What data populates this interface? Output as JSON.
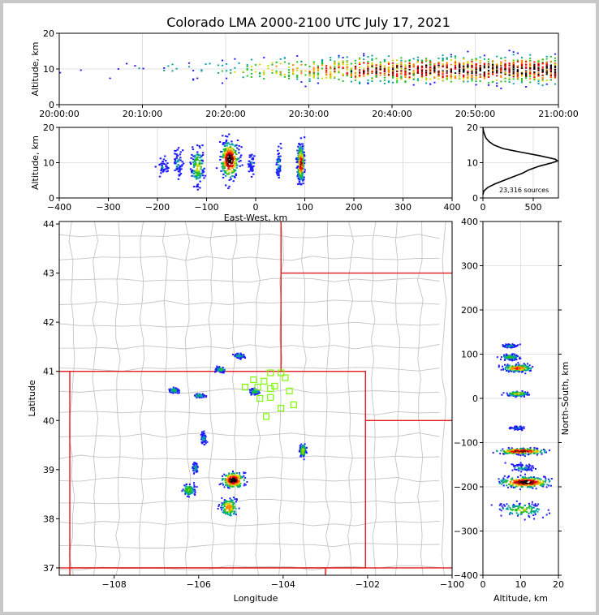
{
  "title": "Colorado LMA 2000-2100 UTC July 17, 2021",
  "colors": {
    "axis": "#000000",
    "grid": "#d8d8d8",
    "border": "#e41a1c",
    "county": "#c4c4c4",
    "station": "#7cfc00",
    "density_scale": [
      "#1e1aff",
      "#00a0a0",
      "#22c022",
      "#d8d800",
      "#ff8800",
      "#ff0000",
      "#8b0000",
      "#000000"
    ]
  },
  "icons": {
    "station_marker": "open-square"
  },
  "chart_data": [
    {
      "id": "time-height",
      "type": "heatmap",
      "title": "",
      "xlabel": "",
      "ylabel": "Altitude, km",
      "xlim": [
        "20:00:00",
        "21:00:00"
      ],
      "ylim": [
        0,
        20
      ],
      "xticks": [
        "20:00:00",
        "20:10:00",
        "20:20:00",
        "20:30:00",
        "20:40:00",
        "20:50:00",
        "21:00:00"
      ],
      "yticks": [
        0,
        10,
        20
      ],
      "grid": true,
      "density_profile": {
        "minutes": [
          0,
          5,
          10,
          15,
          20,
          25,
          30,
          35,
          40,
          45,
          50,
          55,
          60
        ],
        "relative_rate": [
          0.05,
          0.08,
          0.12,
          0.2,
          0.3,
          0.45,
          0.6,
          0.75,
          0.85,
          0.9,
          0.95,
          1.0,
          1.0
        ],
        "altitude_center_km": [
          9,
          9,
          10,
          10,
          10,
          10,
          10,
          10,
          10,
          10,
          10,
          10,
          10
        ],
        "altitude_spread_km": [
          1.5,
          2,
          2.5,
          3,
          3,
          3,
          3,
          3,
          3,
          3,
          3,
          3,
          3
        ]
      }
    },
    {
      "id": "ew-height",
      "type": "heatmap",
      "title": "",
      "xlabel": "East-West, km",
      "ylabel": "Altitude, km",
      "xlim": [
        -400,
        400
      ],
      "ylim": [
        0,
        20
      ],
      "xticks": [
        -400,
        -300,
        -200,
        -100,
        0,
        100,
        200,
        300,
        400
      ],
      "yticks": [
        0,
        10,
        20
      ],
      "grid": true,
      "clusters": [
        {
          "ew_km": -190,
          "alt_km": 9,
          "ew_spread": 8,
          "alt_spread": 2,
          "peak": 0.15
        },
        {
          "ew_km": -160,
          "alt_km": 10,
          "ew_spread": 6,
          "alt_spread": 3,
          "peak": 0.2
        },
        {
          "ew_km": -120,
          "alt_km": 9,
          "ew_spread": 10,
          "alt_spread": 4,
          "peak": 0.45
        },
        {
          "ew_km": -55,
          "alt_km": 11,
          "ew_spread": 14,
          "alt_spread": 4,
          "peak": 1.0
        },
        {
          "ew_km": -10,
          "alt_km": 10,
          "ew_spread": 4,
          "alt_spread": 2,
          "peak": 0.15
        },
        {
          "ew_km": 45,
          "alt_km": 10,
          "ew_spread": 3,
          "alt_spread": 3,
          "peak": 0.2
        },
        {
          "ew_km": 90,
          "alt_km": 10,
          "ew_spread": 5,
          "alt_spread": 4,
          "peak": 0.85
        }
      ]
    },
    {
      "id": "altitude-histogram",
      "type": "line",
      "title": "",
      "xlabel": "",
      "ylabel": "",
      "xlim": [
        0,
        750
      ],
      "ylim": [
        0,
        20
      ],
      "xticks": [
        0,
        500
      ],
      "yticks": [
        0,
        10,
        20
      ],
      "grid": true,
      "annotation": "23,316 sources",
      "series": [
        {
          "altitude_km": [
            1,
            2,
            3,
            4,
            5,
            6,
            7,
            8,
            9,
            10,
            10.5,
            11,
            12,
            13,
            14,
            15,
            16,
            17,
            18,
            19,
            20
          ],
          "source_count": [
            0,
            10,
            50,
            120,
            210,
            300,
            390,
            460,
            560,
            690,
            740,
            720,
            560,
            370,
            200,
            110,
            60,
            30,
            15,
            5,
            0
          ]
        }
      ]
    },
    {
      "id": "plan-view",
      "type": "scatter",
      "title": "",
      "xlabel": "Longitude",
      "ylabel": "Latitude",
      "xlim": [
        -109.3,
        -100.0
      ],
      "ylim": [
        36.85,
        44.05
      ],
      "xticks": [
        -108,
        -106,
        -104,
        -102,
        -100
      ],
      "yticks": [
        37,
        38,
        39,
        40,
        41,
        42,
        43,
        44
      ],
      "grid": false,
      "stations": {
        "lon": [
          -104.3,
          -104.05,
          -103.95,
          -104.7,
          -104.45,
          -104.2,
          -104.9,
          -104.6,
          -104.3,
          -103.85,
          -104.55,
          -104.3,
          -104.05,
          -103.75,
          -104.4
        ],
        "lat": [
          40.97,
          40.97,
          40.87,
          40.83,
          40.8,
          40.7,
          40.68,
          40.68,
          40.65,
          40.6,
          40.45,
          40.47,
          40.25,
          40.32,
          40.08
        ]
      },
      "clusters": [
        {
          "lon": -104.7,
          "lat": 40.6,
          "r_lon": 0.1,
          "r_lat": 0.05,
          "peak": 0.3
        },
        {
          "lon": -105.5,
          "lat": 41.05,
          "r_lon": 0.1,
          "r_lat": 0.05,
          "peak": 0.3
        },
        {
          "lon": -105.05,
          "lat": 41.33,
          "r_lon": 0.1,
          "r_lat": 0.04,
          "peak": 0.25
        },
        {
          "lon": -106.6,
          "lat": 40.63,
          "r_lon": 0.1,
          "r_lat": 0.04,
          "peak": 0.3
        },
        {
          "lon": -106.0,
          "lat": 40.52,
          "r_lon": 0.1,
          "r_lat": 0.04,
          "peak": 0.25
        },
        {
          "lon": -105.2,
          "lat": 38.8,
          "r_lon": 0.2,
          "r_lat": 0.12,
          "peak": 1.0
        },
        {
          "lon": -105.3,
          "lat": 38.25,
          "r_lon": 0.15,
          "r_lat": 0.15,
          "peak": 0.6
        },
        {
          "lon": -106.25,
          "lat": 38.6,
          "r_lon": 0.12,
          "r_lat": 0.1,
          "peak": 0.4
        },
        {
          "lon": -106.1,
          "lat": 39.05,
          "r_lon": 0.05,
          "r_lat": 0.08,
          "peak": 0.2
        },
        {
          "lon": -103.55,
          "lat": 39.4,
          "r_lon": 0.06,
          "r_lat": 0.1,
          "peak": 0.5
        },
        {
          "lon": -105.9,
          "lat": 39.65,
          "r_lon": 0.05,
          "r_lat": 0.1,
          "peak": 0.2
        }
      ]
    },
    {
      "id": "ns-height",
      "type": "heatmap",
      "title": "",
      "xlabel": "Altitude, km",
      "ylabel": "North-South, km",
      "xlim": [
        0,
        20
      ],
      "ylim": [
        -400,
        400
      ],
      "xticks": [
        0,
        10,
        20
      ],
      "yticks": [
        -400,
        -300,
        -200,
        -100,
        0,
        100,
        200,
        300,
        400
      ],
      "grid": true,
      "clusters": [
        {
          "alt_km": 7,
          "ns_km": 120,
          "alt_spread": 1.5,
          "ns_spread": 3,
          "peak": 0.2
        },
        {
          "alt_km": 7,
          "ns_km": 95,
          "alt_spread": 2,
          "ns_spread": 5,
          "peak": 0.3
        },
        {
          "alt_km": 9,
          "ns_km": 70,
          "alt_spread": 3,
          "ns_spread": 6,
          "peak": 0.7
        },
        {
          "alt_km": 9,
          "ns_km": 12,
          "alt_spread": 2.5,
          "ns_spread": 4,
          "peak": 0.5
        },
        {
          "alt_km": 9,
          "ns_km": -65,
          "alt_spread": 1.5,
          "ns_spread": 3,
          "peak": 0.15
        },
        {
          "alt_km": 10,
          "ns_km": -118,
          "alt_spread": 5,
          "ns_spread": 5,
          "peak": 0.9
        },
        {
          "alt_km": 10,
          "ns_km": -155,
          "alt_spread": 3,
          "ns_spread": 6,
          "peak": 0.2
        },
        {
          "alt_km": 11,
          "ns_km": -188,
          "alt_spread": 5,
          "ns_spread": 9,
          "peak": 1.0
        },
        {
          "alt_km": 10,
          "ns_km": -250,
          "alt_spread": 5,
          "ns_spread": 12,
          "peak": 0.4
        }
      ]
    }
  ]
}
